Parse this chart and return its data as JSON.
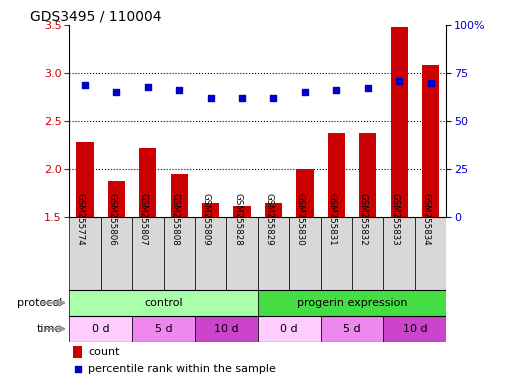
{
  "title": "GDS3495 / 110004",
  "samples": [
    "GSM255774",
    "GSM255806",
    "GSM255807",
    "GSM255808",
    "GSM255809",
    "GSM255828",
    "GSM255829",
    "GSM255830",
    "GSM255831",
    "GSM255832",
    "GSM255833",
    "GSM255834"
  ],
  "bar_values": [
    2.28,
    1.88,
    2.22,
    1.95,
    1.65,
    1.62,
    1.65,
    2.0,
    2.38,
    2.38,
    3.48,
    3.08
  ],
  "dot_values": [
    69,
    65,
    68,
    66,
    62,
    62,
    62,
    65,
    66,
    67,
    71,
    70
  ],
  "ylim_left": [
    1.5,
    3.5
  ],
  "ylim_right": [
    0,
    100
  ],
  "yticks_left": [
    1.5,
    2.0,
    2.5,
    3.0,
    3.5
  ],
  "yticks_right": [
    0,
    25,
    50,
    75,
    100
  ],
  "ytick_labels_right": [
    "0",
    "25",
    "50",
    "75",
    "100%"
  ],
  "bar_color": "#cc0000",
  "dot_color": "#0000cc",
  "hline_values": [
    2.0,
    2.5,
    3.0
  ],
  "protocol_row": [
    {
      "label": "control",
      "start": 0,
      "end": 6,
      "color": "#aaffaa"
    },
    {
      "label": "progerin expression",
      "start": 6,
      "end": 12,
      "color": "#44dd44"
    }
  ],
  "time_row": [
    {
      "label": "0 d",
      "start": 0,
      "end": 2,
      "color": "#ffccff"
    },
    {
      "label": "5 d",
      "start": 2,
      "end": 4,
      "color": "#ee88ee"
    },
    {
      "label": "10 d",
      "start": 4,
      "end": 6,
      "color": "#cc44cc"
    },
    {
      "label": "0 d",
      "start": 6,
      "end": 8,
      "color": "#ffccff"
    },
    {
      "label": "5 d",
      "start": 8,
      "end": 10,
      "color": "#ee88ee"
    },
    {
      "label": "10 d",
      "start": 10,
      "end": 12,
      "color": "#cc44cc"
    }
  ],
  "sample_box_color": "#d8d8d8",
  "legend_count_color": "#cc0000",
  "legend_dot_color": "#0000cc",
  "arrow_color": "#999999"
}
